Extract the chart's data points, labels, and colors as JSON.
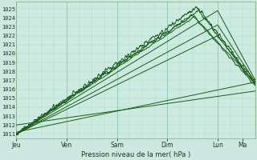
{
  "bg_color": "#cce8e0",
  "plot_bg_color": "#cceae0",
  "grid_color_major": "#88c8b0",
  "grid_color_minor": "#aad8c8",
  "line_color": "#1a5c1a",
  "xlabel": "Pression niveau de la mer( hPa )",
  "ylim": [
    1010.5,
    1025.8
  ],
  "yticks": [
    1011,
    1012,
    1013,
    1014,
    1015,
    1016,
    1017,
    1018,
    1019,
    1020,
    1021,
    1022,
    1023,
    1024,
    1025
  ],
  "day_labels": [
    "Jeu",
    "Ven",
    "Sam",
    "Dim",
    "Lun",
    "Ma"
  ],
  "day_positions": [
    0,
    24,
    48,
    72,
    96,
    108
  ],
  "xlim": [
    0,
    114
  ]
}
